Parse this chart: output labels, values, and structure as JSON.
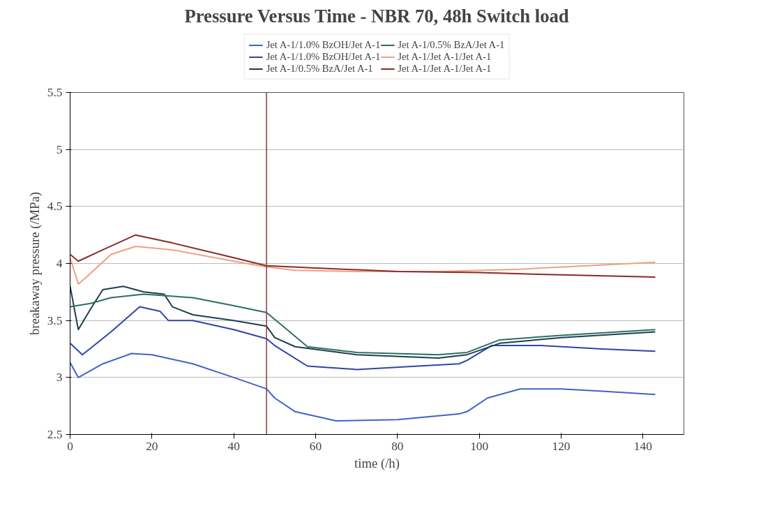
{
  "chart_data": {
    "type": "line",
    "title": "Pressure Versus Time - NBR 70, 48h Switch load",
    "xlabel": "time (/h)",
    "ylabel": "breakaway pressure (/MPa)",
    "xlim": [
      0,
      150
    ],
    "xticks": [
      0,
      20,
      40,
      60,
      80,
      100,
      120,
      140
    ],
    "ylim": [
      2.5,
      5.5
    ],
    "yticks": [
      2.5,
      3,
      3.5,
      4,
      4.5,
      5,
      5.5
    ],
    "grid": "y",
    "legend": "top",
    "marker": "none",
    "ref_lines": [
      {
        "axis": "x",
        "value": 48,
        "color": "#8b3a3a"
      }
    ],
    "series": [
      {
        "name": "Jet A-1/1.0% BzOH/Jet A-1",
        "color": "#3f63c8",
        "x": [
          0,
          2,
          8,
          15,
          20,
          30,
          40,
          48,
          50,
          55,
          65,
          80,
          95,
          97,
          102,
          110,
          120,
          130,
          143
        ],
        "values": [
          3.13,
          3.0,
          3.12,
          3.21,
          3.2,
          3.12,
          3.0,
          2.9,
          2.82,
          2.7,
          2.62,
          2.63,
          2.68,
          2.7,
          2.82,
          2.9,
          2.9,
          2.88,
          2.85
        ]
      },
      {
        "name": "Jet A-1/1.0% BzOH/Jet A-1",
        "color": "#2f44a8",
        "x": [
          0,
          3,
          10,
          17,
          22,
          24,
          30,
          40,
          48,
          50,
          58,
          70,
          85,
          95,
          97,
          103,
          115,
          130,
          143
        ],
        "values": [
          3.3,
          3.2,
          3.4,
          3.62,
          3.58,
          3.5,
          3.5,
          3.42,
          3.34,
          3.28,
          3.1,
          3.07,
          3.1,
          3.12,
          3.15,
          3.28,
          3.28,
          3.25,
          3.23
        ]
      },
      {
        "name": "Jet A-1/0.5% BzA/Jet A-1",
        "color": "#1d3f4f",
        "x": [
          0,
          2,
          5,
          8,
          13,
          18,
          23,
          25,
          30,
          40,
          48,
          50,
          55,
          70,
          90,
          97,
          105,
          120,
          143
        ],
        "values": [
          3.8,
          3.42,
          3.6,
          3.77,
          3.8,
          3.75,
          3.73,
          3.62,
          3.55,
          3.5,
          3.45,
          3.35,
          3.27,
          3.2,
          3.17,
          3.2,
          3.3,
          3.35,
          3.4
        ]
      },
      {
        "name": "Jet A-1/0.5% BzA/Jet A-1",
        "color": "#2e6e62",
        "x": [
          0,
          5,
          10,
          18,
          30,
          40,
          48,
          52,
          58,
          70,
          90,
          97,
          105,
          120,
          143
        ],
        "values": [
          3.62,
          3.65,
          3.7,
          3.73,
          3.7,
          3.63,
          3.57,
          3.45,
          3.27,
          3.22,
          3.2,
          3.22,
          3.33,
          3.37,
          3.42
        ]
      },
      {
        "name": "Jet A-1/Jet A-1/Jet A-1",
        "color": "#f0a080",
        "x": [
          0,
          2,
          4,
          10,
          16,
          25,
          40,
          48,
          55,
          70,
          90,
          110,
          143
        ],
        "values": [
          4.05,
          3.82,
          3.88,
          4.08,
          4.15,
          4.12,
          4.02,
          3.97,
          3.94,
          3.93,
          3.93,
          3.95,
          4.01
        ]
      },
      {
        "name": "Jet A-1/Jet A-1/Jet A-1",
        "color": "#8b2a2a",
        "x": [
          0,
          2,
          8,
          16,
          25,
          40,
          48,
          60,
          80,
          100,
          120,
          143
        ],
        "values": [
          4.08,
          4.02,
          4.12,
          4.25,
          4.18,
          4.05,
          3.98,
          3.96,
          3.93,
          3.92,
          3.9,
          3.88
        ]
      }
    ]
  }
}
